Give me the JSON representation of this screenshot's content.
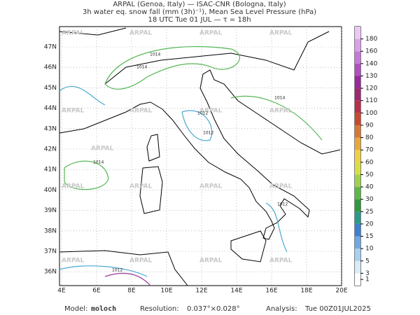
{
  "header": {
    "line1": "ARPAL (Genoa, Italy)  —  ISAC-CNR (Bologna, Italy)",
    "line2": "3h water eq. snow fall (mm (3h)⁻¹), Mean Sea Level Pressure (hPa)",
    "line3": "18 UTC Tue 01 JUL  —  τ = 18h"
  },
  "map": {
    "lon_ticks": [
      {
        "value": 4,
        "label": "4E"
      },
      {
        "value": 6,
        "label": "6E"
      },
      {
        "value": 8,
        "label": "8E"
      },
      {
        "value": 10,
        "label": "10E"
      },
      {
        "value": 12,
        "label": "12E"
      },
      {
        "value": 14,
        "label": "14E"
      },
      {
        "value": 16,
        "label": "16E"
      },
      {
        "value": 18,
        "label": "18E"
      },
      {
        "value": 20,
        "label": "20E"
      }
    ],
    "lat_ticks": [
      {
        "value": 36,
        "label": "36N"
      },
      {
        "value": 37,
        "label": "37N"
      },
      {
        "value": 38,
        "label": "38N"
      },
      {
        "value": 39,
        "label": "39N"
      },
      {
        "value": 40,
        "label": "40N"
      },
      {
        "value": 41,
        "label": "41N"
      },
      {
        "value": 42,
        "label": "42N"
      },
      {
        "value": 43,
        "label": "43N"
      },
      {
        "value": 44,
        "label": "44N"
      },
      {
        "value": 45,
        "label": "45N"
      },
      {
        "value": 46,
        "label": "46N"
      },
      {
        "value": 47,
        "label": "47N"
      }
    ],
    "watermark": "ARPAL",
    "isobar_labels": [
      "1014",
      "1014",
      "1014",
      "1014",
      "1012",
      "1012",
      "1012",
      "1012"
    ]
  },
  "colorbar": {
    "levels": [
      1,
      3,
      5,
      10,
      15,
      20,
      25,
      30,
      40,
      50,
      60,
      70,
      80,
      90,
      100,
      110,
      120,
      130,
      140,
      160,
      180
    ],
    "colors": [
      "#ffffff",
      "#d8ecf8",
      "#a8d0f0",
      "#6fa8e0",
      "#3f7fd0",
      "#2a9a8a",
      "#2f9a3c",
      "#5cb848",
      "#9ed24c",
      "#d8e040",
      "#f0d040",
      "#e8a838",
      "#d87838",
      "#c84830",
      "#b83048",
      "#a02870",
      "#9a2a9a",
      "#b050c0",
      "#c878d8",
      "#dca0e8",
      "#eec8f4"
    ]
  },
  "footer": {
    "model_label": "Model:",
    "model": "moloch",
    "res_label": "Resolution:",
    "res": "0.037°×0.028°",
    "analysis_label": "Analysis:",
    "analysis": "Tue 00Z01JUL2025"
  }
}
